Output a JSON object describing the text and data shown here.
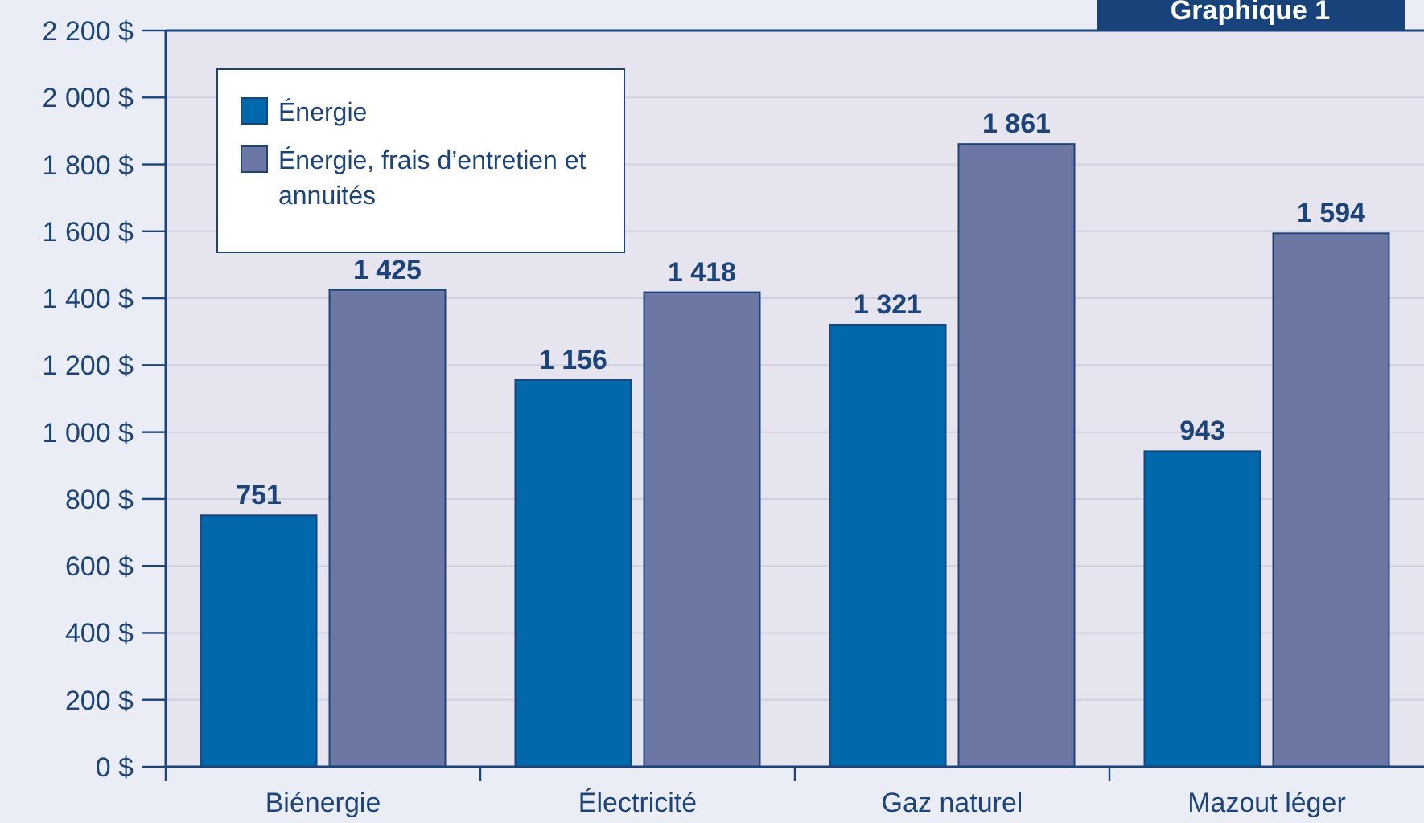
{
  "chart_data": {
    "type": "bar",
    "title": "Graphique 1",
    "categories": [
      "Biénergie",
      "Électricité",
      "Gaz naturel",
      "Mazout léger"
    ],
    "series": [
      {
        "name": "Énergie",
        "color": "#0068ab",
        "values": [
          751,
          1156,
          1321,
          943
        ],
        "value_labels": [
          "751",
          "1 156",
          "1 321",
          "943"
        ]
      },
      {
        "name": "Énergie, frais d’entretien et annuités",
        "color": "#6c77a3",
        "values": [
          1425,
          1418,
          1861,
          1594
        ],
        "value_labels": [
          "1 425",
          "1 418",
          "1 861",
          "1 594"
        ]
      }
    ],
    "ylim": [
      0,
      2200
    ],
    "yticks": [
      {
        "value": 0,
        "label": "0 $"
      },
      {
        "value": 200,
        "label": "200 $"
      },
      {
        "value": 400,
        "label": "400 $"
      },
      {
        "value": 600,
        "label": "600 $"
      },
      {
        "value": 800,
        "label": "800 $"
      },
      {
        "value": 1000,
        "label": "1 000 $"
      },
      {
        "value": 1200,
        "label": "1 200 $"
      },
      {
        "value": 1400,
        "label": "1 400 $"
      },
      {
        "value": 1600,
        "label": "1 600 $"
      },
      {
        "value": 1800,
        "label": "1 800 $"
      },
      {
        "value": 2000,
        "label": "2 000 $"
      },
      {
        "value": 2200,
        "label": "2 200 $"
      }
    ],
    "grid": "y",
    "legend": "top left"
  }
}
